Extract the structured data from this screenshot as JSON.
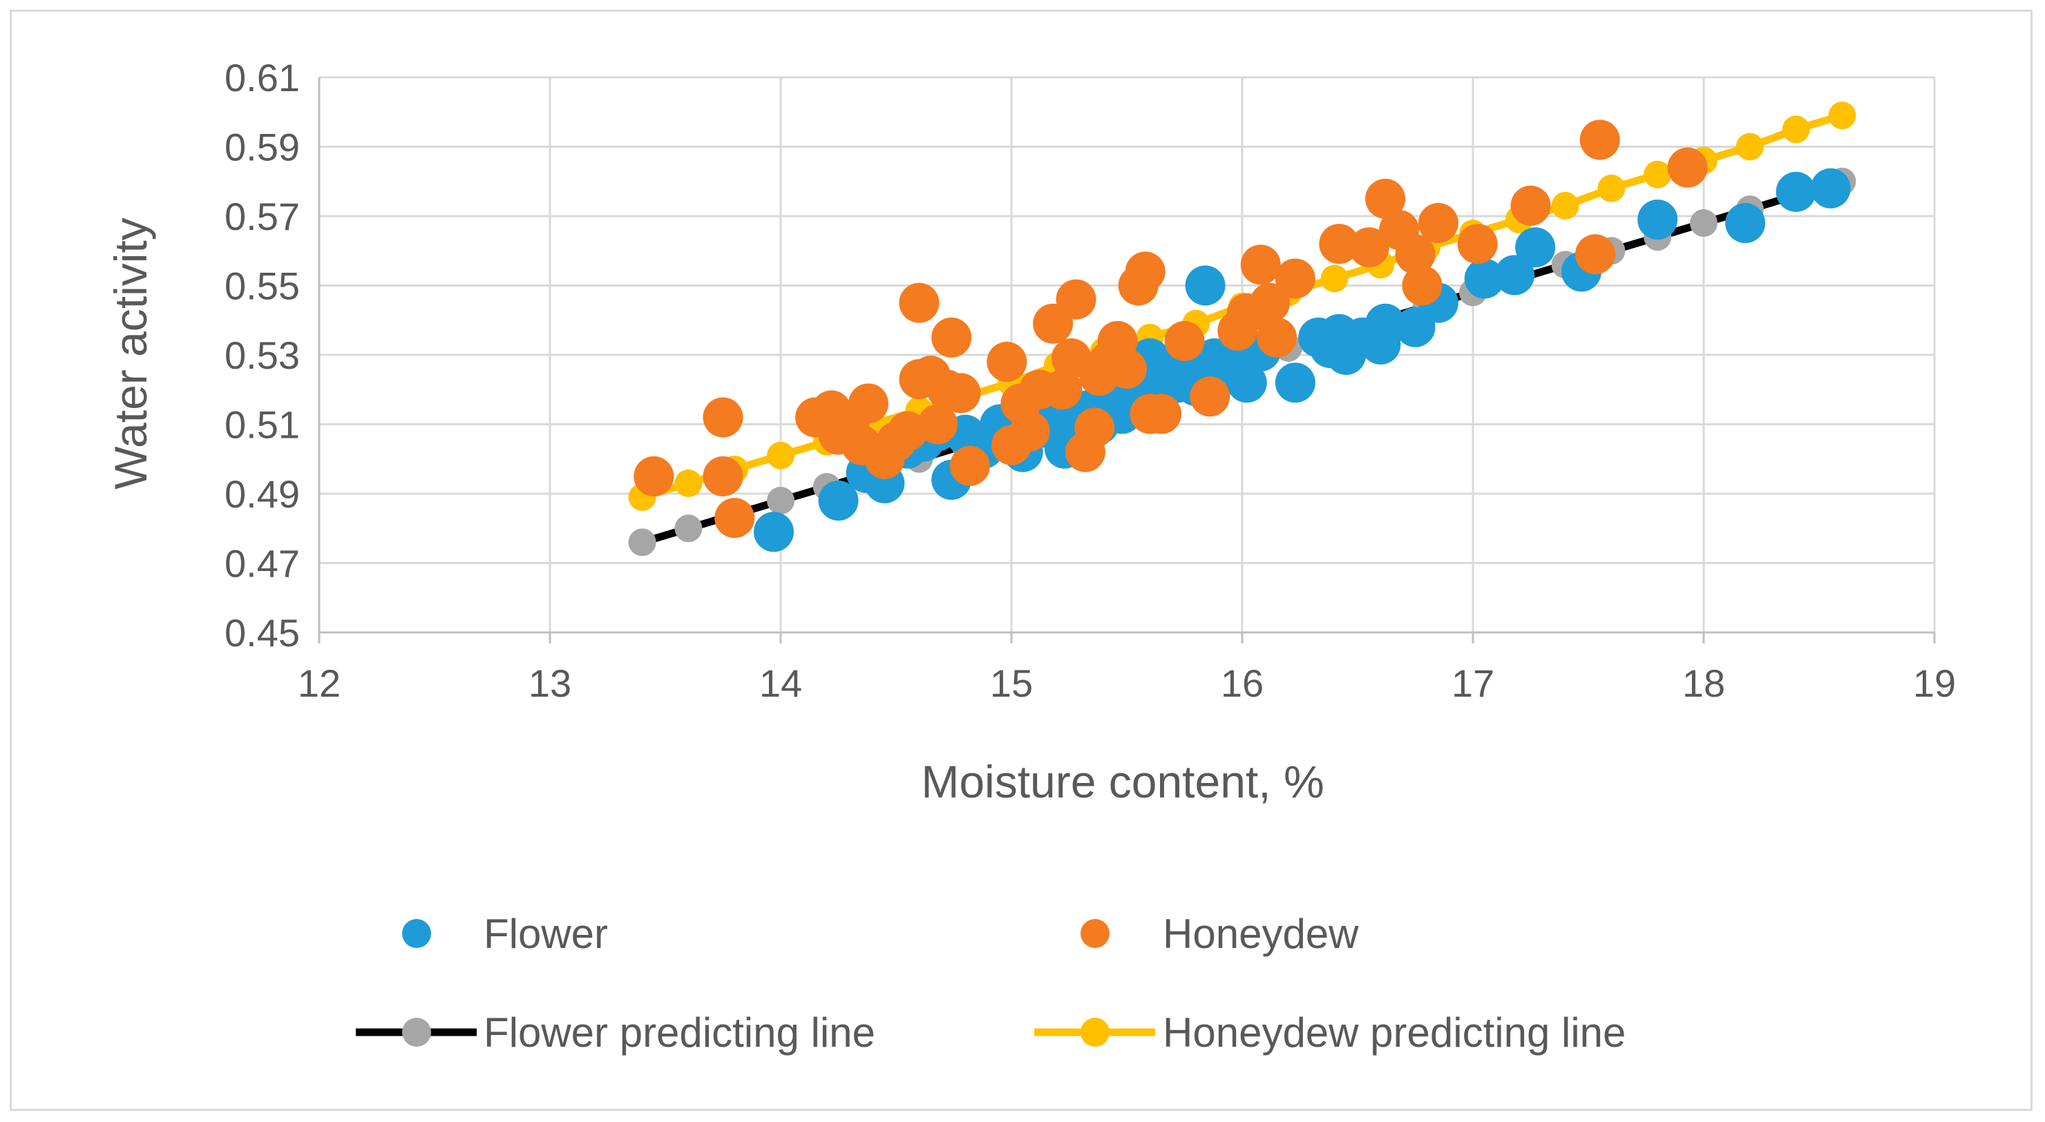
{
  "chart_data": {
    "type": "scatter",
    "xlabel": "Moisture content, %",
    "ylabel": "Water activity",
    "xlim": [
      12,
      19
    ],
    "ylim": [
      0.45,
      0.61
    ],
    "x_ticks": [
      "12",
      "13",
      "14",
      "15",
      "16",
      "17",
      "18",
      "19"
    ],
    "y_ticks": [
      "0.45",
      "0.47",
      "0.49",
      "0.51",
      "0.53",
      "0.55",
      "0.57",
      "0.59",
      "0.61"
    ],
    "grid": true,
    "legend_position": "bottom",
    "series": [
      {
        "name": "Flower",
        "kind": "scatter",
        "color": "#1f9bd7",
        "points": [
          [
            13.97,
            0.479
          ],
          [
            14.25,
            0.488
          ],
          [
            14.37,
            0.496
          ],
          [
            14.45,
            0.493
          ],
          [
            14.55,
            0.503
          ],
          [
            14.62,
            0.505
          ],
          [
            14.68,
            0.508
          ],
          [
            14.74,
            0.494
          ],
          [
            14.8,
            0.507
          ],
          [
            14.88,
            0.503
          ],
          [
            14.95,
            0.51
          ],
          [
            15.0,
            0.506
          ],
          [
            15.05,
            0.502
          ],
          [
            15.1,
            0.512
          ],
          [
            15.15,
            0.509
          ],
          [
            15.2,
            0.516
          ],
          [
            15.23,
            0.503
          ],
          [
            15.28,
            0.511
          ],
          [
            15.33,
            0.514
          ],
          [
            15.38,
            0.51
          ],
          [
            15.43,
            0.518
          ],
          [
            15.48,
            0.513
          ],
          [
            15.52,
            0.521
          ],
          [
            15.57,
            0.519
          ],
          [
            15.6,
            0.529
          ],
          [
            15.64,
            0.524
          ],
          [
            15.68,
            0.527
          ],
          [
            15.72,
            0.522
          ],
          [
            15.76,
            0.526
          ],
          [
            15.8,
            0.521
          ],
          [
            15.84,
            0.55
          ],
          [
            15.88,
            0.529
          ],
          [
            15.92,
            0.524
          ],
          [
            15.96,
            0.527
          ],
          [
            16.02,
            0.522
          ],
          [
            16.08,
            0.531
          ],
          [
            16.23,
            0.522
          ],
          [
            16.33,
            0.535
          ],
          [
            16.38,
            0.532
          ],
          [
            16.42,
            0.536
          ],
          [
            16.45,
            0.53
          ],
          [
            16.52,
            0.535
          ],
          [
            16.6,
            0.533
          ],
          [
            16.62,
            0.539
          ],
          [
            16.75,
            0.538
          ],
          [
            16.85,
            0.545
          ],
          [
            17.05,
            0.552
          ],
          [
            17.18,
            0.553
          ],
          [
            17.27,
            0.561
          ],
          [
            17.47,
            0.554
          ],
          [
            17.8,
            0.569
          ],
          [
            18.18,
            0.568
          ],
          [
            18.4,
            0.577
          ],
          [
            18.55,
            0.578
          ]
        ]
      },
      {
        "name": "Honeydew",
        "kind": "scatter",
        "color": "#f47b20",
        "points": [
          [
            13.45,
            0.495
          ],
          [
            13.75,
            0.512
          ],
          [
            13.75,
            0.495
          ],
          [
            13.8,
            0.483
          ],
          [
            14.15,
            0.512
          ],
          [
            14.22,
            0.514
          ],
          [
            14.25,
            0.507
          ],
          [
            14.3,
            0.511
          ],
          [
            14.35,
            0.504
          ],
          [
            14.38,
            0.516
          ],
          [
            14.45,
            0.5
          ],
          [
            14.5,
            0.505
          ],
          [
            14.55,
            0.508
          ],
          [
            14.6,
            0.523
          ],
          [
            14.6,
            0.545
          ],
          [
            14.65,
            0.524
          ],
          [
            14.68,
            0.51
          ],
          [
            14.72,
            0.52
          ],
          [
            14.74,
            0.535
          ],
          [
            14.78,
            0.519
          ],
          [
            14.82,
            0.498
          ],
          [
            14.98,
            0.528
          ],
          [
            15.0,
            0.504
          ],
          [
            15.04,
            0.516
          ],
          [
            15.08,
            0.508
          ],
          [
            15.12,
            0.52
          ],
          [
            15.18,
            0.539
          ],
          [
            15.22,
            0.52
          ],
          [
            15.26,
            0.529
          ],
          [
            15.28,
            0.546
          ],
          [
            15.32,
            0.502
          ],
          [
            15.36,
            0.509
          ],
          [
            15.38,
            0.524
          ],
          [
            15.42,
            0.528
          ],
          [
            15.46,
            0.534
          ],
          [
            15.5,
            0.526
          ],
          [
            15.55,
            0.55
          ],
          [
            15.58,
            0.554
          ],
          [
            15.6,
            0.513
          ],
          [
            15.65,
            0.513
          ],
          [
            15.75,
            0.534
          ],
          [
            15.86,
            0.518
          ],
          [
            15.98,
            0.537
          ],
          [
            16.02,
            0.542
          ],
          [
            16.08,
            0.556
          ],
          [
            16.12,
            0.545
          ],
          [
            16.15,
            0.535
          ],
          [
            16.23,
            0.552
          ],
          [
            16.42,
            0.562
          ],
          [
            16.55,
            0.561
          ],
          [
            16.62,
            0.575
          ],
          [
            16.68,
            0.566
          ],
          [
            16.75,
            0.559
          ],
          [
            16.78,
            0.55
          ],
          [
            16.85,
            0.568
          ],
          [
            17.02,
            0.562
          ],
          [
            17.25,
            0.573
          ],
          [
            17.53,
            0.559
          ],
          [
            17.55,
            0.592
          ],
          [
            17.93,
            0.584
          ]
        ]
      },
      {
        "name": "Flower predicting line",
        "kind": "line",
        "line_color": "#000000",
        "marker_color": "#a6a6a6",
        "points": [
          [
            13.4,
            0.476
          ],
          [
            13.6,
            0.48
          ],
          [
            13.8,
            0.484
          ],
          [
            14.0,
            0.488
          ],
          [
            14.2,
            0.492
          ],
          [
            14.4,
            0.496
          ],
          [
            14.6,
            0.5
          ],
          [
            14.8,
            0.504
          ],
          [
            15.0,
            0.508
          ],
          [
            15.2,
            0.512
          ],
          [
            15.4,
            0.516
          ],
          [
            15.6,
            0.52
          ],
          [
            15.8,
            0.524
          ],
          [
            16.0,
            0.528
          ],
          [
            16.2,
            0.532
          ],
          [
            16.4,
            0.536
          ],
          [
            16.6,
            0.54
          ],
          [
            16.8,
            0.544
          ],
          [
            17.0,
            0.548
          ],
          [
            17.2,
            0.552
          ],
          [
            17.4,
            0.556
          ],
          [
            17.6,
            0.56
          ],
          [
            17.8,
            0.564
          ],
          [
            18.0,
            0.568
          ],
          [
            18.2,
            0.572
          ],
          [
            18.4,
            0.576
          ],
          [
            18.6,
            0.58
          ]
        ]
      },
      {
        "name": "Honeydew predicting line",
        "kind": "line",
        "line_color": "#ffc000",
        "marker_color": "#ffc000",
        "points": [
          [
            13.4,
            0.489
          ],
          [
            13.6,
            0.493
          ],
          [
            13.8,
            0.497
          ],
          [
            14.0,
            0.501
          ],
          [
            14.2,
            0.505
          ],
          [
            14.4,
            0.51
          ],
          [
            14.6,
            0.514
          ],
          [
            14.8,
            0.518
          ],
          [
            15.0,
            0.522
          ],
          [
            15.2,
            0.527
          ],
          [
            15.4,
            0.531
          ],
          [
            15.6,
            0.535
          ],
          [
            15.8,
            0.539
          ],
          [
            16.0,
            0.544
          ],
          [
            16.2,
            0.548
          ],
          [
            16.4,
            0.552
          ],
          [
            16.6,
            0.556
          ],
          [
            16.8,
            0.561
          ],
          [
            17.0,
            0.565
          ],
          [
            17.2,
            0.569
          ],
          [
            17.4,
            0.573
          ],
          [
            17.6,
            0.578
          ],
          [
            17.8,
            0.582
          ],
          [
            18.0,
            0.586
          ],
          [
            18.2,
            0.59
          ],
          [
            18.4,
            0.595
          ],
          [
            18.6,
            0.599
          ]
        ]
      }
    ]
  }
}
